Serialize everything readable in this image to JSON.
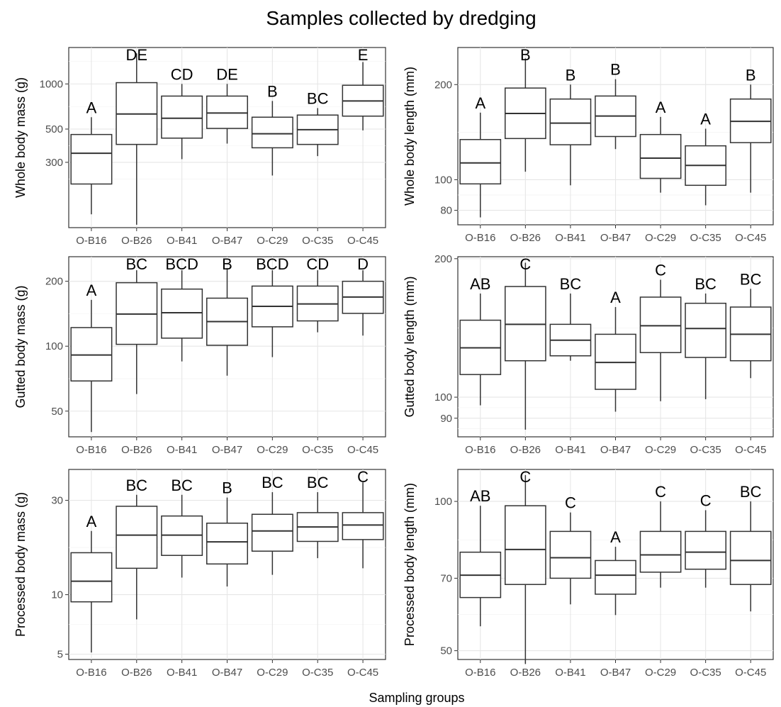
{
  "title": "Samples collected by dredging",
  "xlabel": "Sampling groups",
  "chart_data": [
    {
      "type": "boxplot",
      "yscale": "log",
      "ylabel": "Whole body mass (g)",
      "categories": [
        "O-B16",
        "O-B26",
        "O-B41",
        "O-B47",
        "O-C29",
        "O-C35",
        "O-C45"
      ],
      "yticks": [
        300,
        500,
        1000
      ],
      "ylim": [
        110,
        1750
      ],
      "boxes": [
        {
          "min": 135,
          "q1": 215,
          "median": 345,
          "q3": 460,
          "max": 600
        },
        {
          "min": 115,
          "q1": 395,
          "median": 630,
          "q3": 1020,
          "max": 1600
        },
        {
          "min": 315,
          "q1": 435,
          "median": 590,
          "q3": 830,
          "max": 1000
        },
        {
          "min": 400,
          "q1": 505,
          "median": 640,
          "q3": 830,
          "max": 1000
        },
        {
          "min": 245,
          "q1": 375,
          "median": 465,
          "q3": 600,
          "max": 770
        },
        {
          "min": 330,
          "q1": 395,
          "median": 495,
          "q3": 620,
          "max": 690
        },
        {
          "min": 490,
          "q1": 610,
          "median": 770,
          "q3": 980,
          "max": 1400
        }
      ],
      "letters": [
        "A",
        "DE",
        "CD",
        "DE",
        "B",
        "BC",
        "E"
      ]
    },
    {
      "type": "boxplot",
      "yscale": "log",
      "ylabel": "Whole body length (mm)",
      "categories": [
        "O-B16",
        "O-B26",
        "O-B41",
        "O-B47",
        "O-C29",
        "O-C35",
        "O-C45"
      ],
      "yticks": [
        80,
        100,
        200
      ],
      "ylim": [
        72,
        262
      ],
      "boxes": [
        {
          "min": 76,
          "q1": 97,
          "median": 113,
          "q3": 134,
          "max": 163
        },
        {
          "min": 106,
          "q1": 135,
          "median": 162,
          "q3": 195,
          "max": 242
        },
        {
          "min": 96,
          "q1": 129,
          "median": 151,
          "q3": 180,
          "max": 200
        },
        {
          "min": 125,
          "q1": 137,
          "median": 159,
          "q3": 184,
          "max": 208
        },
        {
          "min": 91,
          "q1": 101,
          "median": 117,
          "q3": 139,
          "max": 158
        },
        {
          "min": 83,
          "q1": 96,
          "median": 111,
          "q3": 128,
          "max": 145
        },
        {
          "min": 91,
          "q1": 131,
          "median": 153,
          "q3": 180,
          "max": 200
        }
      ],
      "letters": [
        "A",
        "B",
        "B",
        "B",
        "A",
        "A",
        "B"
      ]
    },
    {
      "type": "boxplot",
      "yscale": "log",
      "ylabel": "Gutted body mass (g)",
      "categories": [
        "O-B16",
        "O-B26",
        "O-B41",
        "O-B47",
        "O-C29",
        "O-C35",
        "O-C45"
      ],
      "yticks": [
        50,
        100,
        200
      ],
      "ylim": [
        38,
        260
      ],
      "boxes": [
        {
          "min": 40,
          "q1": 69,
          "median": 91,
          "q3": 122,
          "max": 164
        },
        {
          "min": 60,
          "q1": 102,
          "median": 141,
          "q3": 197,
          "max": 225
        },
        {
          "min": 85,
          "q1": 109,
          "median": 143,
          "q3": 184,
          "max": 225
        },
        {
          "min": 73,
          "q1": 101,
          "median": 130,
          "q3": 167,
          "max": 230
        },
        {
          "min": 89,
          "q1": 123,
          "median": 153,
          "q3": 190,
          "max": 225
        },
        {
          "min": 116,
          "q1": 131,
          "median": 157,
          "q3": 190,
          "max": 225
        },
        {
          "min": 112,
          "q1": 142,
          "median": 169,
          "q3": 200,
          "max": 225
        }
      ],
      "letters": [
        "A",
        "BC",
        "BCD",
        "B",
        "BCD",
        "CD",
        "D"
      ]
    },
    {
      "type": "boxplot",
      "yscale": "log",
      "ylabel": "Gutted body length (mm)",
      "categories": [
        "O-B16",
        "O-B26",
        "O-B41",
        "O-B47",
        "O-C29",
        "O-C35",
        "O-C45"
      ],
      "yticks": [
        90,
        100,
        200
      ],
      "ylim": [
        82,
        202
      ],
      "boxes": [
        {
          "min": 96,
          "q1": 112,
          "median": 128,
          "q3": 147,
          "max": 168
        },
        {
          "min": 85,
          "q1": 120,
          "median": 144,
          "q3": 174,
          "max": 196
        },
        {
          "min": 120,
          "q1": 123,
          "median": 133,
          "q3": 144,
          "max": 168
        },
        {
          "min": 93,
          "q1": 104,
          "median": 119,
          "q3": 137,
          "max": 157
        },
        {
          "min": 98,
          "q1": 125,
          "median": 143,
          "q3": 165,
          "max": 180
        },
        {
          "min": 99,
          "q1": 122,
          "median": 141,
          "q3": 160,
          "max": 168
        },
        {
          "min": 110,
          "q1": 120,
          "median": 137,
          "q3": 157,
          "max": 172
        }
      ],
      "letters": [
        "AB",
        "C",
        "BC",
        "A",
        "C",
        "BC",
        "BC"
      ]
    },
    {
      "type": "boxplot",
      "yscale": "log",
      "ylabel": "Processed body mass (g)",
      "categories": [
        "O-B16",
        "O-B26",
        "O-B41",
        "O-B47",
        "O-C29",
        "O-C35",
        "O-C45"
      ],
      "yticks": [
        5,
        10,
        30
      ],
      "ylim": [
        4.7,
        43
      ],
      "boxes": [
        {
          "min": 5.1,
          "q1": 9.2,
          "median": 11.7,
          "q3": 16.3,
          "max": 21
        },
        {
          "min": 7.5,
          "q1": 13.6,
          "median": 20,
          "q3": 28,
          "max": 32
        },
        {
          "min": 12.2,
          "q1": 15.8,
          "median": 20,
          "q3": 25,
          "max": 32
        },
        {
          "min": 11,
          "q1": 14.3,
          "median": 18.5,
          "q3": 23,
          "max": 31
        },
        {
          "min": 12.6,
          "q1": 16.6,
          "median": 21,
          "q3": 25.5,
          "max": 33
        },
        {
          "min": 15.3,
          "q1": 18.6,
          "median": 22,
          "q3": 26,
          "max": 33
        },
        {
          "min": 13.6,
          "q1": 19,
          "median": 22.5,
          "q3": 26,
          "max": 37
        }
      ],
      "letters": [
        "A",
        "BC",
        "BC",
        "B",
        "BC",
        "BC",
        "C"
      ]
    },
    {
      "type": "boxplot",
      "yscale": "log",
      "ylabel": "Processed body length (mm)",
      "categories": [
        "O-B16",
        "O-B26",
        "O-B41",
        "O-B47",
        "O-C29",
        "O-C35",
        "O-C45"
      ],
      "yticks": [
        50,
        70,
        100
      ],
      "ylim": [
        48,
        116
      ],
      "boxes": [
        {
          "min": 56,
          "q1": 64,
          "median": 71,
          "q3": 79,
          "max": 98
        },
        {
          "min": 47,
          "q1": 68,
          "median": 80,
          "q3": 98,
          "max": 113
        },
        {
          "min": 62,
          "q1": 70,
          "median": 77,
          "q3": 87,
          "max": 95
        },
        {
          "min": 59,
          "q1": 65,
          "median": 71,
          "q3": 76,
          "max": 81
        },
        {
          "min": 67,
          "q1": 72,
          "median": 78,
          "q3": 87,
          "max": 100
        },
        {
          "min": 67,
          "q1": 73,
          "median": 79,
          "q3": 87,
          "max": 96
        },
        {
          "min": 60,
          "q1": 68,
          "median": 76,
          "q3": 87,
          "max": 100
        }
      ],
      "letters": [
        "AB",
        "C",
        "C",
        "A",
        "C",
        "C",
        "BC"
      ]
    }
  ]
}
